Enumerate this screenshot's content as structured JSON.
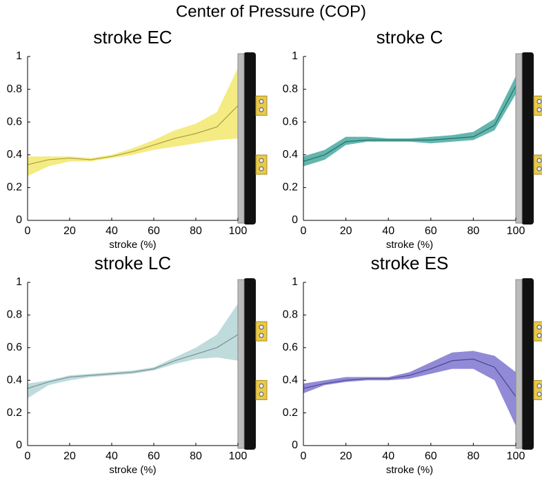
{
  "title": "Center of Pressure (COP)",
  "chart_data": [
    {
      "type": "line",
      "title": "stroke EC",
      "xlabel": "stroke (%)",
      "color": "#f2e45a",
      "x": [
        0,
        10,
        20,
        30,
        40,
        50,
        60,
        70,
        80,
        90,
        100
      ],
      "values": [
        0.34,
        0.37,
        0.38,
        0.37,
        0.39,
        0.42,
        0.46,
        0.5,
        0.53,
        0.57,
        0.7
      ],
      "upper": [
        0.39,
        0.39,
        0.39,
        0.38,
        0.4,
        0.44,
        0.49,
        0.55,
        0.59,
        0.66,
        0.93
      ],
      "lower": [
        0.27,
        0.33,
        0.36,
        0.36,
        0.38,
        0.4,
        0.43,
        0.45,
        0.47,
        0.49,
        0.5
      ],
      "xlim": [
        0,
        100
      ],
      "ylim": [
        0,
        1
      ],
      "xticks": [
        0,
        20,
        40,
        60,
        80,
        100
      ],
      "yticks": [
        0,
        0.2,
        0.4,
        0.6,
        0.8,
        1
      ]
    },
    {
      "type": "line",
      "title": "stroke C",
      "xlabel": "stroke (%)",
      "color": "#2f9e93",
      "x": [
        0,
        10,
        20,
        30,
        40,
        50,
        60,
        70,
        80,
        90,
        100
      ],
      "values": [
        0.36,
        0.4,
        0.48,
        0.49,
        0.49,
        0.49,
        0.49,
        0.5,
        0.51,
        0.58,
        0.82
      ],
      "upper": [
        0.39,
        0.43,
        0.51,
        0.51,
        0.5,
        0.5,
        0.51,
        0.52,
        0.54,
        0.62,
        0.88
      ],
      "lower": [
        0.33,
        0.37,
        0.46,
        0.48,
        0.48,
        0.48,
        0.47,
        0.48,
        0.49,
        0.55,
        0.77
      ],
      "xlim": [
        0,
        100
      ],
      "ylim": [
        0,
        1
      ],
      "xticks": [
        0,
        20,
        40,
        60,
        80,
        100
      ],
      "yticks": [
        0,
        0.2,
        0.4,
        0.6,
        0.8,
        1
      ]
    },
    {
      "type": "line",
      "title": "stroke LC",
      "xlabel": "stroke (%)",
      "color": "#a9cfcf",
      "x": [
        0,
        10,
        20,
        30,
        40,
        50,
        60,
        70,
        80,
        90,
        100
      ],
      "values": [
        0.35,
        0.39,
        0.42,
        0.43,
        0.44,
        0.45,
        0.47,
        0.52,
        0.56,
        0.6,
        0.68
      ],
      "upper": [
        0.38,
        0.4,
        0.43,
        0.44,
        0.45,
        0.46,
        0.48,
        0.54,
        0.6,
        0.68,
        0.87
      ],
      "lower": [
        0.29,
        0.37,
        0.4,
        0.42,
        0.43,
        0.44,
        0.46,
        0.5,
        0.53,
        0.54,
        0.52
      ],
      "xlim": [
        0,
        100
      ],
      "ylim": [
        0,
        1
      ],
      "xticks": [
        0,
        20,
        40,
        60,
        80,
        100
      ],
      "yticks": [
        0,
        0.2,
        0.4,
        0.6,
        0.8,
        1
      ]
    },
    {
      "type": "line",
      "title": "stroke ES",
      "xlabel": "stroke (%)",
      "color": "#6c63c8",
      "x": [
        0,
        10,
        20,
        30,
        40,
        50,
        60,
        70,
        80,
        90,
        100
      ],
      "values": [
        0.35,
        0.38,
        0.4,
        0.41,
        0.41,
        0.43,
        0.47,
        0.52,
        0.53,
        0.48,
        0.3
      ],
      "upper": [
        0.38,
        0.4,
        0.42,
        0.42,
        0.42,
        0.45,
        0.51,
        0.57,
        0.58,
        0.55,
        0.45
      ],
      "lower": [
        0.32,
        0.37,
        0.39,
        0.4,
        0.4,
        0.41,
        0.44,
        0.47,
        0.47,
        0.4,
        0.12
      ],
      "xlim": [
        0,
        100
      ],
      "ylim": [
        0,
        1
      ],
      "xticks": [
        0,
        20,
        40,
        60,
        80,
        100
      ],
      "yticks": [
        0,
        0.2,
        0.4,
        0.6,
        0.8,
        1
      ]
    }
  ]
}
